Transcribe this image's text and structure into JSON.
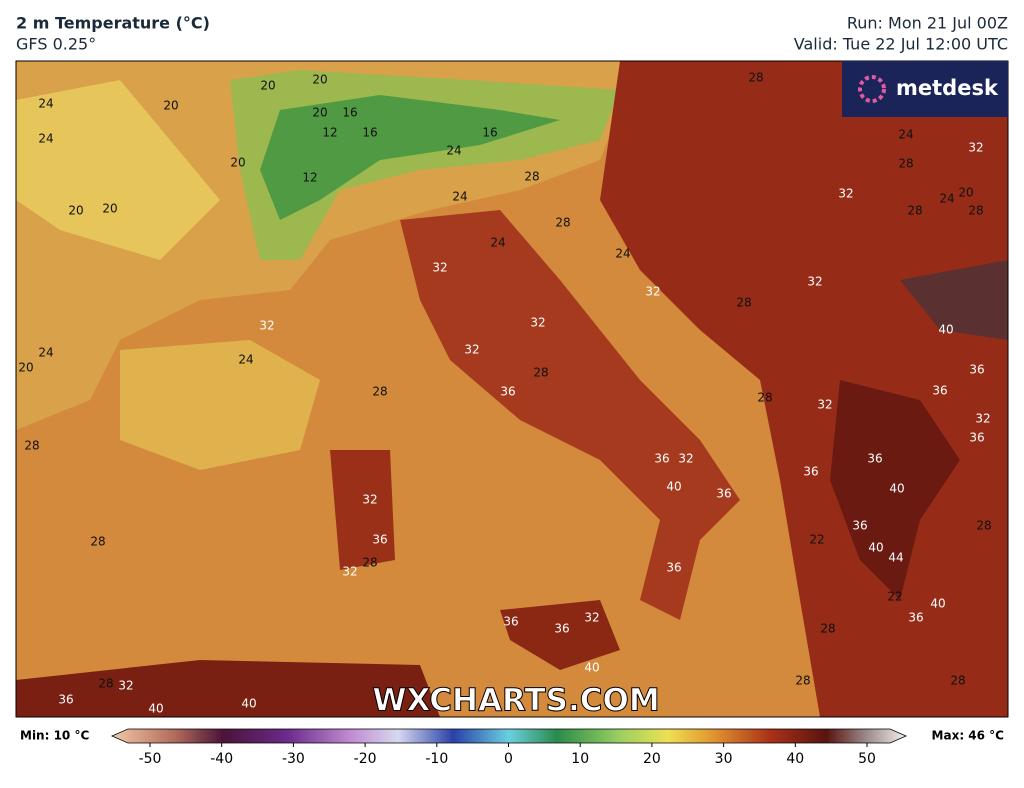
{
  "header": {
    "title": "2 m Temperature (°C)",
    "model": "GFS 0.25°",
    "run": "Run: Mon 21 Jul 00Z",
    "valid": "Valid: Tue 22 Jul 12:00 UTC"
  },
  "logo": "metdesk",
  "watermark": "WXCHARTS.COM",
  "colorbar": {
    "min_label": "Min: 10 °C",
    "max_label": "Max: 46 °C",
    "range": [
      -50,
      50
    ],
    "ticks": [
      -50,
      -40,
      -30,
      -20,
      -10,
      0,
      10,
      20,
      30,
      40,
      50
    ]
  },
  "map": {
    "contour_labels": [
      24,
      20,
      20,
      20,
      24,
      16,
      20,
      12,
      16,
      16,
      20,
      12,
      24,
      20,
      20,
      24,
      28,
      28,
      24,
      24,
      32,
      32,
      24,
      24,
      20,
      32,
      28,
      32,
      32,
      24,
      28,
      32,
      20,
      24,
      28,
      28,
      32,
      32,
      36,
      28,
      28,
      28,
      32,
      36,
      32,
      28,
      28,
      36,
      32,
      40,
      36,
      36,
      32,
      36,
      40,
      36,
      36,
      40,
      44,
      22,
      22,
      40,
      36,
      32,
      36,
      36,
      40,
      28,
      28,
      28,
      28,
      40,
      36,
      36,
      32,
      36,
      28,
      28,
      32,
      36,
      40,
      40,
      28
    ]
  }
}
